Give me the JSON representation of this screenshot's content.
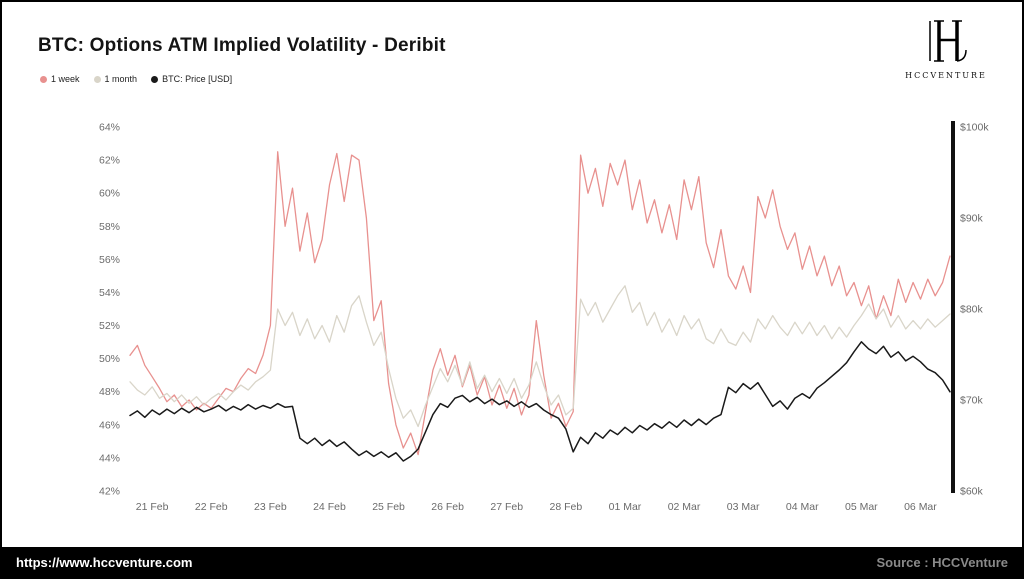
{
  "title": "BTC: Options ATM Implied Volatility - Deribit",
  "logo": {
    "monogram": "H",
    "text": "HCCVENTURE"
  },
  "footer": {
    "url": "https://www.hccventure.com",
    "source": "Source : HCCVenture"
  },
  "chart_data": {
    "type": "line",
    "title": "BTC: Options ATM Implied Volatility - Deribit",
    "x_axis": {
      "domain": [
        -0.375,
        13.5
      ],
      "tick_positions": [
        0,
        1,
        2,
        3,
        4,
        5,
        6,
        7,
        8,
        9,
        10,
        11,
        12,
        13
      ],
      "tick_labels": [
        "21 Feb",
        "22 Feb",
        "23 Feb",
        "24 Feb",
        "25 Feb",
        "26 Feb",
        "27 Feb",
        "28 Feb",
        "01 Mar",
        "02 Mar",
        "03 Mar",
        "04 Mar",
        "05 Mar",
        "06 Mar"
      ]
    },
    "y_left": {
      "min": 42,
      "max": 64,
      "tick_values": [
        42,
        44,
        46,
        48,
        50,
        52,
        54,
        56,
        58,
        60,
        62,
        64
      ],
      "tick_labels": [
        "42%",
        "44%",
        "46%",
        "48%",
        "50%",
        "52%",
        "54%",
        "56%",
        "58%",
        "60%",
        "62%",
        "64%"
      ]
    },
    "y_right": {
      "min": 60,
      "max": 100,
      "tick_values": [
        60,
        70,
        80,
        90,
        100
      ],
      "tick_labels": [
        "$60k",
        "$70k",
        "$80k",
        "$90k",
        "$100k"
      ]
    },
    "grid": false,
    "legend_position": "top-left",
    "series": [
      {
        "name": "1 week",
        "unit": "%",
        "axis": "left",
        "color": "#e8918f",
        "width": 1.3,
        "x_start": -0.375,
        "x_step": 0.125,
        "values": [
          50.2,
          50.8,
          49.6,
          48.9,
          48.2,
          47.4,
          47.8,
          47.1,
          47.5,
          46.9,
          47.3,
          47.0,
          47.6,
          48.2,
          48.0,
          48.8,
          49.4,
          49.1,
          50.2,
          52.0,
          62.5,
          58.0,
          60.3,
          56.5,
          58.8,
          55.8,
          57.2,
          60.5,
          62.4,
          59.5,
          62.3,
          62.0,
          58.5,
          52.3,
          53.5,
          48.5,
          46.0,
          44.6,
          45.5,
          44.2,
          46.8,
          49.3,
          50.6,
          49.0,
          50.2,
          48.3,
          49.6,
          47.8,
          48.9,
          47.2,
          48.4,
          47.0,
          48.2,
          46.6,
          47.8,
          52.3,
          49.0,
          46.4,
          47.3,
          45.9,
          46.8,
          62.3,
          60.0,
          61.5,
          59.2,
          61.8,
          60.5,
          62.0,
          59.0,
          60.8,
          58.2,
          59.6,
          57.6,
          59.3,
          57.2,
          60.8,
          59.0,
          61.0,
          57.0,
          55.5,
          57.8,
          55.0,
          54.2,
          55.6,
          54.0,
          59.8,
          58.5,
          60.2,
          58.0,
          56.6,
          57.6,
          55.4,
          56.8,
          55.0,
          56.2,
          54.4,
          55.6,
          53.8,
          54.6,
          53.2,
          54.4,
          52.4,
          53.8,
          52.6,
          54.8,
          53.4,
          54.6,
          53.6,
          54.8,
          53.8,
          54.6,
          56.2
        ]
      },
      {
        "name": "1 month",
        "unit": "%",
        "axis": "left",
        "color": "#d9d5c9",
        "width": 1.3,
        "x_start": -0.375,
        "x_step": 0.125,
        "values": [
          48.6,
          48.1,
          47.8,
          48.3,
          47.6,
          47.9,
          47.4,
          47.8,
          47.3,
          47.7,
          47.2,
          47.6,
          47.9,
          47.5,
          48.0,
          48.4,
          48.1,
          48.6,
          48.9,
          49.3,
          53.0,
          52.0,
          52.8,
          51.4,
          52.4,
          51.2,
          52.0,
          51.0,
          52.6,
          51.6,
          53.2,
          53.8,
          52.2,
          50.8,
          51.6,
          49.4,
          47.6,
          46.4,
          46.9,
          45.9,
          47.2,
          48.3,
          49.4,
          48.6,
          49.6,
          48.4,
          49.8,
          48.2,
          49.0,
          48.0,
          48.8,
          47.9,
          48.8,
          47.6,
          48.4,
          49.8,
          48.4,
          47.2,
          47.8,
          46.6,
          47.0,
          53.6,
          52.6,
          53.4,
          52.2,
          53.0,
          53.8,
          54.4,
          52.8,
          53.4,
          52.0,
          52.8,
          51.6,
          52.4,
          51.4,
          52.6,
          51.8,
          52.4,
          51.2,
          50.9,
          51.8,
          51.0,
          50.8,
          51.6,
          51.0,
          52.4,
          51.8,
          52.6,
          51.9,
          51.4,
          52.2,
          51.5,
          52.2,
          51.4,
          52.0,
          51.2,
          51.9,
          51.3,
          52.0,
          52.6,
          53.3,
          52.4,
          53.0,
          51.9,
          52.6,
          51.8,
          52.3,
          51.8,
          52.4,
          51.9,
          52.3,
          52.7
        ]
      },
      {
        "name": "BTC: Price [USD]",
        "unit": "$k",
        "axis": "right",
        "color": "#1a1a1a",
        "width": 1.5,
        "x_start": -0.375,
        "x_step": 0.125,
        "values": [
          68.3,
          68.8,
          68.1,
          68.9,
          68.4,
          69.0,
          68.5,
          69.1,
          68.6,
          69.2,
          68.7,
          69.0,
          69.4,
          68.8,
          69.3,
          68.9,
          69.5,
          69.0,
          69.4,
          69.1,
          69.6,
          69.2,
          69.3,
          65.8,
          65.2,
          65.8,
          65.0,
          65.6,
          64.9,
          65.4,
          64.6,
          63.9,
          64.4,
          63.8,
          64.3,
          63.7,
          64.2,
          63.3,
          63.8,
          64.6,
          66.5,
          68.4,
          69.6,
          69.2,
          70.2,
          70.5,
          69.8,
          70.3,
          69.6,
          70.1,
          69.5,
          69.9,
          69.3,
          69.8,
          69.2,
          69.6,
          68.9,
          68.4,
          68.0,
          66.8,
          64.3,
          65.9,
          65.2,
          66.4,
          65.8,
          66.7,
          66.2,
          67.0,
          66.4,
          67.2,
          66.7,
          67.4,
          66.9,
          67.6,
          67.0,
          67.8,
          67.2,
          67.9,
          67.3,
          68.0,
          68.4,
          71.4,
          70.8,
          71.8,
          71.2,
          71.9,
          70.6,
          69.3,
          69.9,
          69.0,
          70.2,
          70.7,
          70.2,
          71.3,
          71.9,
          72.6,
          73.3,
          74.1,
          75.3,
          76.4,
          75.6,
          75.1,
          75.9,
          74.7,
          75.3,
          74.3,
          74.8,
          74.2,
          73.4,
          73.0,
          72.2,
          70.9
        ]
      }
    ]
  }
}
